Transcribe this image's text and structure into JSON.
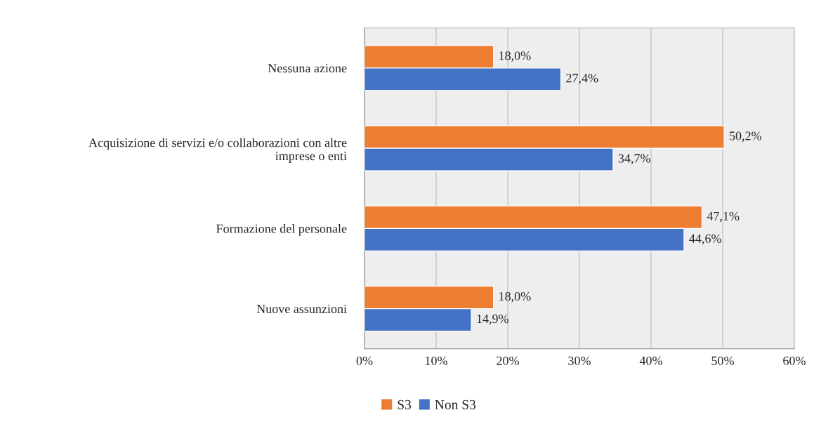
{
  "chart_data": {
    "type": "bar",
    "orientation": "horizontal",
    "categories": [
      "Nessuna azione",
      "Acquisizione di servizi e/o collaborazioni con altre\nimprese o enti",
      "Formazione del personale",
      "Nuove assunzioni"
    ],
    "series": [
      {
        "name": "S3",
        "color": "#ed7d31",
        "values": [
          18.0,
          50.2,
          47.1,
          18.0
        ],
        "value_labels": [
          "18,0%",
          "50,2%",
          "47,1%",
          "18,0%"
        ]
      },
      {
        "name": "Non S3",
        "color": "#4472c4",
        "values": [
          27.4,
          34.7,
          44.6,
          14.9
        ],
        "value_labels": [
          "27,4%",
          "34,7%",
          "44,6%",
          "14,9%"
        ]
      }
    ],
    "xlim": [
      0,
      60
    ],
    "xticks": [
      {
        "value": 0,
        "label": "0%"
      },
      {
        "value": 10,
        "label": "10%"
      },
      {
        "value": 20,
        "label": "20%"
      },
      {
        "value": 30,
        "label": "30%"
      },
      {
        "value": 40,
        "label": "40%"
      },
      {
        "value": 50,
        "label": "50%"
      },
      {
        "value": 60,
        "label": "60%"
      }
    ],
    "grid": "x",
    "legend": "bottom"
  }
}
